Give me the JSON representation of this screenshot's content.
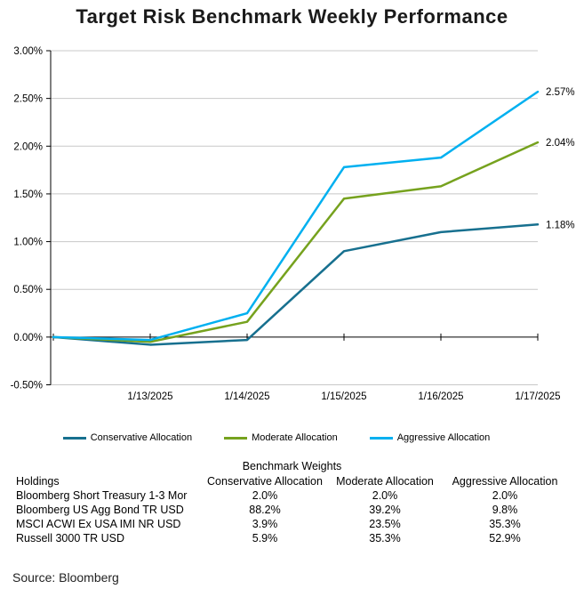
{
  "chart_data": {
    "type": "line",
    "title": "Target Risk Benchmark Weekly Performance",
    "x": [
      "",
      "1/13/2025",
      "1/14/2025",
      "1/15/2025",
      "1/16/2025",
      "1/17/2025"
    ],
    "series": [
      {
        "name": "Conservative Allocation",
        "color": "#17708f",
        "values": [
          0.0,
          -0.08,
          -0.03,
          0.9,
          1.1,
          1.18
        ],
        "end_label": "1.18%"
      },
      {
        "name": "Moderate Allocation",
        "color": "#76a21e",
        "values": [
          0.0,
          -0.05,
          0.16,
          1.45,
          1.58,
          2.04
        ],
        "end_label": "2.04%"
      },
      {
        "name": "Aggressive Allocation",
        "color": "#00b0f0",
        "values": [
          0.0,
          -0.03,
          0.25,
          1.78,
          1.88,
          2.57
        ],
        "end_label": "2.57%"
      }
    ],
    "ylim": [
      -0.5,
      3.0
    ],
    "y_ticks": [
      "3.00%",
      "2.50%",
      "2.00%",
      "1.50%",
      "1.00%",
      "0.50%",
      "0.00%",
      "-0.50%"
    ],
    "grid": true,
    "legend_position": "bottom",
    "gridline_color": "#c8c8c8",
    "axis_color": "#000000"
  },
  "table": {
    "title": "Benchmark Weights",
    "columns": [
      "Holdings",
      "Conservative Allocation",
      "Moderate Allocation",
      "Aggressive Allocation"
    ],
    "rows": [
      {
        "holding": "Bloomberg Short Treasury 1-3 Mor",
        "values": [
          "2.0%",
          "2.0%",
          "2.0%"
        ]
      },
      {
        "holding": "Bloomberg US Agg Bond TR USD",
        "values": [
          "88.2%",
          "39.2%",
          "9.8%"
        ]
      },
      {
        "holding": "MSCI ACWI Ex USA IMI NR USD",
        "values": [
          "3.9%",
          "23.5%",
          "35.3%"
        ]
      },
      {
        "holding": "Russell 3000 TR USD",
        "values": [
          "5.9%",
          "35.3%",
          "52.9%"
        ]
      }
    ]
  },
  "source": "Source: Bloomberg"
}
